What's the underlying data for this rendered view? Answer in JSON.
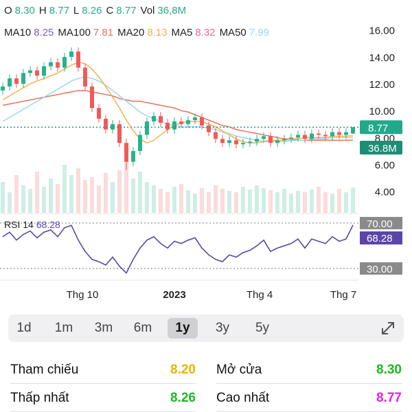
{
  "header": {
    "ohlc": [
      {
        "label": "O",
        "value": "8.30"
      },
      {
        "label": "H",
        "value": "8.77"
      },
      {
        "label": "L",
        "value": "8.26"
      },
      {
        "label": "C",
        "value": "8.77"
      },
      {
        "label": "Vol",
        "value": "36,8M"
      }
    ],
    "mas": [
      {
        "label": "MA10",
        "value": "8.25",
        "color": "#7c5ccf"
      },
      {
        "label": "MA100",
        "value": "7.81",
        "color": "#e8705a"
      },
      {
        "label": "MA20",
        "value": "8.13",
        "color": "#f4b04a"
      },
      {
        "label": "MA5",
        "value": "8.32",
        "color": "#e36aa0"
      },
      {
        "label": "MA50",
        "value": "7.99",
        "color": "#9ad6f2"
      }
    ]
  },
  "chart_data": [
    {
      "type": "candlestick",
      "open": [
        11.5,
        11.8,
        12.4,
        12.0,
        12.8,
        13.0,
        12.6,
        13.3,
        13.6,
        13.2,
        14.0,
        14.4,
        13.2,
        11.8,
        10.2,
        9.4,
        8.6,
        9.0,
        7.6,
        6.2,
        7.0,
        8.2,
        9.2,
        9.6,
        9.1,
        8.6,
        9.2,
        9.0,
        9.3,
        9.5,
        8.9,
        8.4,
        7.9,
        7.6,
        7.8,
        7.5,
        7.6,
        7.7,
        7.9,
        8.1,
        7.6,
        7.8,
        7.9,
        8.0,
        8.2,
        7.9,
        8.3,
        8.2,
        8.1,
        8.4,
        8.2,
        8.3
      ],
      "high": [
        12.1,
        12.7,
        12.7,
        13.1,
        13.3,
        13.3,
        13.6,
        13.9,
        13.9,
        14.3,
        14.7,
        14.7,
        13.5,
        12.1,
        10.5,
        9.7,
        9.3,
        9.3,
        7.9,
        7.3,
        8.5,
        9.5,
        9.9,
        9.9,
        9.4,
        9.5,
        9.5,
        9.6,
        9.8,
        9.8,
        9.2,
        8.7,
        8.2,
        8.1,
        8.1,
        7.9,
        8.0,
        8.2,
        8.4,
        8.4,
        8.1,
        8.2,
        8.3,
        8.5,
        8.5,
        8.6,
        8.6,
        8.5,
        8.7,
        8.7,
        8.7,
        8.77
      ],
      "low": [
        11.2,
        11.5,
        11.7,
        11.7,
        12.5,
        12.3,
        12.3,
        13.0,
        12.9,
        12.9,
        13.7,
        12.9,
        11.5,
        9.9,
        9.1,
        8.3,
        8.3,
        7.3,
        5.6,
        5.9,
        6.7,
        7.9,
        8.9,
        8.8,
        8.3,
        8.3,
        8.7,
        8.7,
        9.0,
        8.6,
        8.1,
        7.6,
        7.3,
        7.3,
        7.2,
        7.2,
        7.3,
        7.4,
        7.6,
        7.3,
        7.3,
        7.5,
        7.6,
        7.7,
        7.6,
        7.6,
        7.9,
        7.8,
        7.8,
        7.9,
        7.9,
        8.26
      ],
      "close": [
        11.8,
        12.4,
        12.0,
        12.8,
        13.0,
        12.6,
        13.3,
        13.6,
        13.2,
        14.0,
        14.4,
        13.2,
        11.8,
        10.2,
        9.4,
        8.6,
        9.0,
        7.6,
        6.2,
        7.0,
        8.2,
        9.2,
        9.6,
        9.1,
        8.6,
        9.2,
        9.0,
        9.3,
        9.5,
        8.9,
        8.4,
        7.9,
        7.6,
        7.8,
        7.5,
        7.6,
        7.7,
        7.9,
        8.1,
        7.6,
        7.8,
        7.9,
        8.0,
        8.2,
        7.9,
        8.3,
        8.2,
        8.1,
        8.4,
        8.2,
        8.4,
        8.77
      ],
      "volume": [
        45,
        30,
        55,
        40,
        35,
        60,
        38,
        50,
        42,
        70,
        55,
        65,
        48,
        52,
        40,
        58,
        45,
        62,
        75,
        50,
        60,
        45,
        40,
        35,
        30,
        38,
        42,
        33,
        28,
        36,
        30,
        40,
        35,
        32,
        30,
        38,
        34,
        40,
        36,
        33,
        30,
        35,
        28,
        32,
        30,
        34,
        38,
        30,
        28,
        35,
        30,
        36.8
      ],
      "volume_lim": [
        0,
        100
      ],
      "volume_label": "36.8M",
      "up_color": "#26b38a",
      "down_color": "#ef5a5a",
      "ma_series": [
        {
          "name": "MA100",
          "color": "#e8705a",
          "values": [
            10.4,
            10.5,
            10.6,
            10.7,
            10.8,
            10.9,
            11.0,
            11.1,
            11.2,
            11.3,
            11.4,
            11.5,
            11.5,
            11.4,
            11.3,
            11.2,
            11.1,
            10.9,
            10.8,
            10.7,
            10.7,
            10.6,
            10.5,
            10.4,
            10.3,
            10.2,
            10.0,
            9.9,
            9.7,
            9.5,
            9.3,
            9.1,
            8.9,
            8.8,
            8.6,
            8.5,
            8.4,
            8.3,
            8.2,
            8.1,
            8.0,
            7.9,
            7.9,
            7.8,
            7.8,
            7.8,
            7.8,
            7.8,
            7.8,
            7.8,
            7.8,
            7.81
          ]
        },
        {
          "name": "MA50",
          "color": "#9ad6f2",
          "values": [
            9.2,
            9.5,
            9.8,
            10.1,
            10.4,
            10.7,
            11.0,
            11.3,
            11.6,
            11.9,
            12.2,
            12.4,
            12.5,
            12.4,
            12.2,
            11.9,
            11.5,
            11.1,
            10.7,
            10.3,
            9.9,
            9.6,
            9.4,
            9.2,
            9.0,
            8.9,
            8.8,
            8.8,
            8.8,
            8.8,
            8.7,
            8.6,
            8.4,
            8.3,
            8.1,
            8.0,
            7.9,
            7.8,
            7.7,
            7.7,
            7.7,
            7.7,
            7.8,
            7.8,
            7.8,
            7.9,
            7.9,
            7.9,
            8.0,
            8.0,
            8.0,
            7.99
          ]
        },
        {
          "name": "MA20",
          "color": "#f4b04a",
          "values": [
            10.8,
            11.1,
            11.4,
            11.7,
            12.0,
            12.2,
            12.4,
            12.6,
            12.8,
            13.1,
            13.4,
            13.6,
            13.5,
            13.1,
            12.5,
            11.8,
            11.0,
            10.2,
            9.3,
            8.5,
            7.9,
            7.6,
            7.8,
            8.2,
            8.6,
            8.9,
            9.1,
            9.2,
            9.2,
            9.2,
            9.0,
            8.8,
            8.5,
            8.2,
            7.9,
            7.7,
            7.6,
            7.6,
            7.7,
            7.8,
            7.8,
            7.8,
            7.9,
            7.9,
            8.0,
            8.0,
            8.0,
            8.0,
            8.1,
            8.1,
            8.1,
            8.13
          ]
        }
      ],
      "ylim": [
        2.4,
        16.7
      ],
      "yticks": [
        {
          "value": 16,
          "label": "16.00"
        },
        {
          "value": 14,
          "label": "14.00"
        },
        {
          "value": 12,
          "label": "12.00"
        },
        {
          "value": 10,
          "label": "10.00"
        },
        {
          "value": 8,
          "label": "8.00"
        },
        {
          "value": 6,
          "label": "6.00"
        },
        {
          "value": 4,
          "label": "4.00"
        }
      ],
      "last_price": {
        "value": 8.77,
        "label": "8.77"
      },
      "xticks": [
        {
          "value": 11.6,
          "label": "Thg 10"
        },
        {
          "value": 25,
          "label": "2023"
        },
        {
          "value": 37.4,
          "label": "Thg 4"
        },
        {
          "value": 49.6,
          "label": "Thg 7"
        }
      ]
    },
    {
      "type": "line",
      "name": "RSI 14",
      "value_label": "68.28",
      "color": "#5b45a8",
      "values": [
        58,
        62,
        55,
        60,
        63,
        57,
        62,
        64,
        58,
        66,
        68,
        55,
        45,
        38,
        36,
        33,
        40,
        32,
        26,
        38,
        48,
        55,
        58,
        52,
        48,
        54,
        52,
        55,
        57,
        48,
        42,
        38,
        36,
        42,
        40,
        44,
        46,
        50,
        55,
        45,
        48,
        50,
        52,
        56,
        48,
        56,
        54,
        52,
        58,
        54,
        56,
        68.28
      ],
      "ylim": [
        21.5,
        76
      ],
      "yticks": [
        {
          "value": 70,
          "label": "70.00"
        },
        {
          "value": 30,
          "label": "30.00"
        }
      ]
    }
  ],
  "range": {
    "options": [
      "1d",
      "1m",
      "3m",
      "6m",
      "1y",
      "3y",
      "5y"
    ],
    "selected": "1y"
  },
  "stats": [
    {
      "label": "Tham chiếu",
      "value": "8.20",
      "color": "#e8b400"
    },
    {
      "label": "Mở cửa",
      "value": "8.30",
      "color": "#1fb81f"
    },
    {
      "label": "Thấp nhất",
      "value": "8.26",
      "color": "#1fb81f"
    },
    {
      "label": "Cao nhất",
      "value": "8.77",
      "color": "#e81ee8"
    }
  ]
}
